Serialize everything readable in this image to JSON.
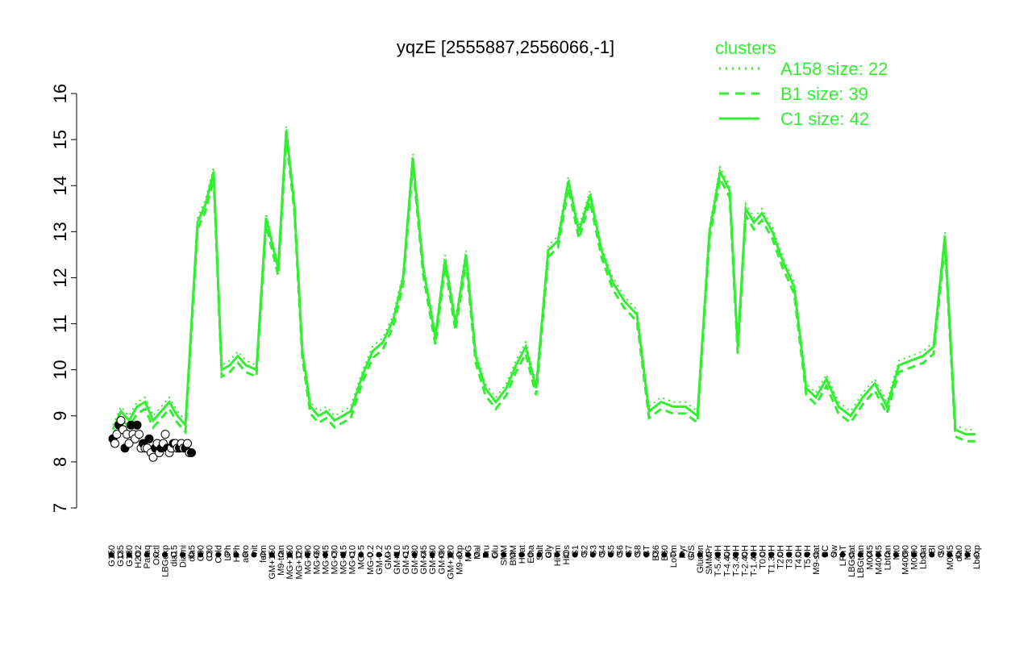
{
  "chart_data": {
    "type": "line",
    "title": "yqzE [2555887,2556066,-1]",
    "xlabel": "",
    "ylabel": "",
    "ylim": [
      7,
      16
    ],
    "yticks": [
      7,
      8,
      9,
      10,
      11,
      12,
      13,
      14,
      15,
      16
    ],
    "grid": false,
    "legend_position": "top-right",
    "legend": {
      "title": "clusters",
      "entries": [
        {
          "label": "A158 size: 22",
          "style": "dotted"
        },
        {
          "label": "B1 size: 39",
          "style": "dashed"
        },
        {
          "label": "C1 size: 42",
          "style": "solid"
        }
      ]
    },
    "colors": {
      "clusters": "#33ee33",
      "points": "#000000"
    },
    "xtick_labels": [
      "G150",
      "G135",
      "G180",
      "H2O2",
      "Paraq",
      "Oxctl",
      "LBGexp",
      "dia15",
      "Diami",
      "dia5",
      "C90",
      "C30",
      "Cold",
      "LPh",
      "HPh",
      "aero",
      "nit",
      "ferm",
      "GM+150",
      "M9-tran",
      "MG+150",
      "MG+120",
      "MG+90",
      "MG+60",
      "MG+45",
      "MG+30",
      "MG+15",
      "MG+10",
      "MG+5",
      "MG-0.2",
      "GM-0.2",
      "GM+5",
      "GM+10",
      "GM+15",
      "GM+30",
      "GM+45",
      "GM+60",
      "GM+90",
      "GM+120",
      "M9-exp",
      "M/G",
      "Mal",
      "Fru",
      "Glu",
      "SMM",
      "BMM",
      "Heat",
      "Etha",
      "Salt",
      "Gly",
      "HiTm",
      "HiOs",
      "S1",
      "S2",
      "S3",
      "S4",
      "S5",
      "S6",
      "S7",
      "S8",
      "BT",
      "B36",
      "B60",
      "LoTm",
      "Pyr",
      "G/S",
      "Glucon",
      "SMMPr",
      "T-5.40H",
      "T-4.40H",
      "T-3.40H",
      "T-2.40H",
      "T-1.40H",
      "T0.0H",
      "T1.30H",
      "T2.0H",
      "T3.0H",
      "T4.0H",
      "T5.0H",
      "M9-stat",
      "BC",
      "Sw",
      "LPhT",
      "LBGstat",
      "LBGtran",
      "M0t45",
      "M40t45",
      "Lbtran",
      "Mt0",
      "M40t90",
      "M0t90",
      "Lbstat",
      "BI",
      "S0",
      "M0t45",
      "dia0",
      "Mt0",
      "Lbexp"
    ],
    "series": [
      {
        "style": "points",
        "values": [
          8.5,
          8.4,
          8.6,
          8.8,
          8.9,
          8.7,
          8.3,
          8.6,
          8.4,
          8.8,
          8.6,
          8.5,
          8.8,
          8.6,
          8.3,
          8.4,
          8.3,
          8.3,
          8.5,
          8.2,
          8.1,
          8.3,
          8.4,
          8.2,
          8.3,
          8.4,
          8.6,
          8.3,
          8.2,
          8.3,
          8.4,
          8.4,
          8.3,
          8.3,
          8.4,
          8.3,
          8.3,
          8.4,
          8.2,
          8.2
        ]
      }
    ]
  }
}
